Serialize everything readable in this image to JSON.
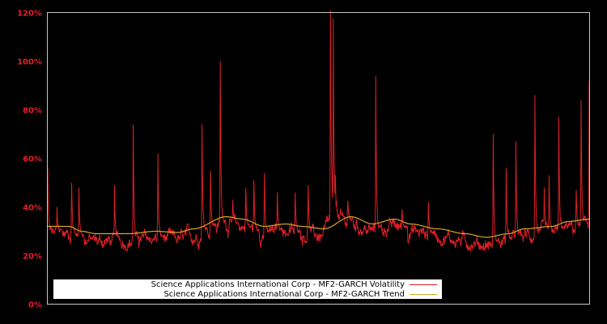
{
  "chart_data": {
    "type": "line",
    "title": "",
    "xlabel": "",
    "ylabel": "",
    "ylim": [
      0,
      120
    ],
    "yticks": [
      "0%",
      "20%",
      "40%",
      "60%",
      "80%",
      "100%",
      "120%"
    ],
    "grid": false,
    "legend_position": "bottom-left inside plot",
    "background": "#000000",
    "axis_color": "#c8c8c8",
    "tick_label_color": "#e0202a",
    "series": [
      {
        "name": "Science Applications International Corp - MF2-GARCH Volatility",
        "color": "#dc2027",
        "baseline_pct_note": "daily volatility oscillating ~26-36% with spikes",
        "spikes": [
          {
            "x_frac": 0.001,
            "value": 58
          },
          {
            "x_frac": 0.018,
            "value": 42
          },
          {
            "x_frac": 0.045,
            "value": 52
          },
          {
            "x_frac": 0.058,
            "value": 50
          },
          {
            "x_frac": 0.124,
            "value": 51
          },
          {
            "x_frac": 0.158,
            "value": 76
          },
          {
            "x_frac": 0.204,
            "value": 64
          },
          {
            "x_frac": 0.285,
            "value": 76
          },
          {
            "x_frac": 0.301,
            "value": 57
          },
          {
            "x_frac": 0.319,
            "value": 102
          },
          {
            "x_frac": 0.342,
            "value": 45
          },
          {
            "x_frac": 0.366,
            "value": 50
          },
          {
            "x_frac": 0.381,
            "value": 53
          },
          {
            "x_frac": 0.4,
            "value": 56
          },
          {
            "x_frac": 0.424,
            "value": 48
          },
          {
            "x_frac": 0.457,
            "value": 48
          },
          {
            "x_frac": 0.481,
            "value": 51
          },
          {
            "x_frac": 0.522,
            "value": 113
          },
          {
            "x_frac": 0.527,
            "value": 108
          },
          {
            "x_frac": 0.531,
            "value": 50
          },
          {
            "x_frac": 0.554,
            "value": 43
          },
          {
            "x_frac": 0.606,
            "value": 96
          },
          {
            "x_frac": 0.654,
            "value": 41
          },
          {
            "x_frac": 0.703,
            "value": 44
          },
          {
            "x_frac": 0.822,
            "value": 72
          },
          {
            "x_frac": 0.846,
            "value": 58
          },
          {
            "x_frac": 0.864,
            "value": 69
          },
          {
            "x_frac": 0.899,
            "value": 88
          },
          {
            "x_frac": 0.916,
            "value": 50
          },
          {
            "x_frac": 0.925,
            "value": 55
          },
          {
            "x_frac": 0.943,
            "value": 79
          },
          {
            "x_frac": 0.975,
            "value": 49
          },
          {
            "x_frac": 0.984,
            "value": 86
          },
          {
            "x_frac": 0.999,
            "value": 94
          }
        ]
      },
      {
        "name": "Science Applications International Corp - MF2-GARCH Trend",
        "color": "#d4a82a",
        "points": [
          {
            "x_frac": 0.0,
            "value": 32
          },
          {
            "x_frac": 0.04,
            "value": 32
          },
          {
            "x_frac": 0.063,
            "value": 30
          },
          {
            "x_frac": 0.09,
            "value": 29
          },
          {
            "x_frac": 0.15,
            "value": 29
          },
          {
            "x_frac": 0.2,
            "value": 30
          },
          {
            "x_frac": 0.24,
            "value": 29.5
          },
          {
            "x_frac": 0.27,
            "value": 31
          },
          {
            "x_frac": 0.33,
            "value": 36
          },
          {
            "x_frac": 0.36,
            "value": 35
          },
          {
            "x_frac": 0.4,
            "value": 32
          },
          {
            "x_frac": 0.44,
            "value": 33
          },
          {
            "x_frac": 0.47,
            "value": 32
          },
          {
            "x_frac": 0.51,
            "value": 31
          },
          {
            "x_frac": 0.56,
            "value": 36
          },
          {
            "x_frac": 0.6,
            "value": 33
          },
          {
            "x_frac": 0.64,
            "value": 35
          },
          {
            "x_frac": 0.67,
            "value": 33
          },
          {
            "x_frac": 0.72,
            "value": 31
          },
          {
            "x_frac": 0.77,
            "value": 29
          },
          {
            "x_frac": 0.81,
            "value": 27.5
          },
          {
            "x_frac": 0.85,
            "value": 29
          },
          {
            "x_frac": 0.88,
            "value": 31
          },
          {
            "x_frac": 0.93,
            "value": 32
          },
          {
            "x_frac": 0.96,
            "value": 34
          },
          {
            "x_frac": 1.0,
            "value": 35
          }
        ]
      }
    ]
  },
  "legend": {
    "items": [
      {
        "label": "Science Applications International Corp - MF2-GARCH Volatility",
        "color": "#dc2027"
      },
      {
        "label": "Science Applications International Corp - MF2-GARCH Trend",
        "color": "#d4a82a"
      }
    ]
  }
}
